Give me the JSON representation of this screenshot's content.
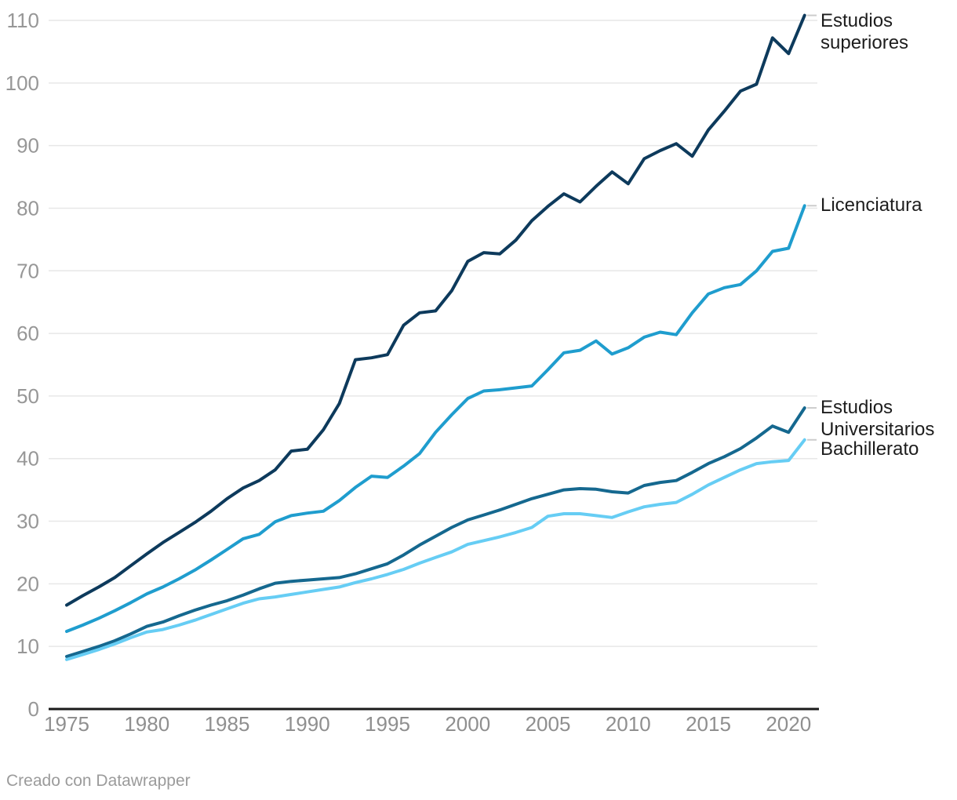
{
  "footer": {
    "credit": "Creado con Datawrapper"
  },
  "chart_data": {
    "type": "line",
    "title": "",
    "x_start": 1975,
    "x_end": 2021,
    "x_axis": {
      "ticks": [
        1975,
        1980,
        1985,
        1990,
        1995,
        2000,
        2005,
        2010,
        2015,
        2020
      ]
    },
    "y_axis": {
      "min": 0,
      "max": 110,
      "ticks": [
        0,
        10,
        20,
        30,
        40,
        50,
        60,
        70,
        80,
        90,
        100,
        110
      ]
    },
    "grid": true,
    "legend_position": "labels-at-line-ends-right",
    "colors": {
      "grid": "#e7e7e7",
      "axis": "#1a1a1a",
      "y_tick_label": "#979797",
      "x_tick_label": "#8f8f8f",
      "series_label": "#1d1d1d",
      "connector": "#cccccc"
    },
    "series": [
      {
        "id": "estudios-superiores",
        "name": "Estudios superiores",
        "label_lines": [
          "Estudios",
          "superiores"
        ],
        "color": "#0d3a5c",
        "values": [
          16.6,
          18.1,
          19.5,
          21.0,
          22.9,
          24.8,
          26.6,
          28.2,
          29.8,
          31.6,
          33.6,
          35.3,
          36.5,
          38.2,
          41.2,
          41.5,
          44.6,
          48.8,
          55.8,
          56.1,
          56.6,
          61.3,
          63.3,
          63.6,
          66.8,
          71.5,
          72.9,
          72.7,
          74.9,
          78.0,
          80.3,
          82.3,
          81.0,
          83.5,
          85.8,
          83.9,
          87.9,
          89.2,
          90.3,
          88.3,
          92.5,
          95.5,
          98.7,
          99.8,
          107.2,
          104.7,
          110.8
        ]
      },
      {
        "id": "licenciatura",
        "name": "Licenciatura",
        "label_lines": [
          "Licenciatura"
        ],
        "color": "#1f9dce",
        "values": [
          12.4,
          13.4,
          14.5,
          15.7,
          17.0,
          18.4,
          19.5,
          20.8,
          22.2,
          23.8,
          25.5,
          27.2,
          27.9,
          29.9,
          30.9,
          31.3,
          31.6,
          33.3,
          35.4,
          37.2,
          37.0,
          38.8,
          40.8,
          44.2,
          47.0,
          49.6,
          50.8,
          51.0,
          51.3,
          51.6,
          54.2,
          56.9,
          57.3,
          58.8,
          56.7,
          57.7,
          59.4,
          60.2,
          59.8,
          63.3,
          66.3,
          67.3,
          67.8,
          70.0,
          73.1,
          73.6,
          80.4
        ]
      },
      {
        "id": "estudios-universitarios",
        "name": "Estudios Universitarios",
        "label_lines": [
          "Estudios",
          "Universitarios"
        ],
        "color": "#15688f",
        "values": [
          8.4,
          9.2,
          10.0,
          10.9,
          12.0,
          13.2,
          13.9,
          14.9,
          15.8,
          16.6,
          17.3,
          18.2,
          19.2,
          20.1,
          20.4,
          20.6,
          20.8,
          21.0,
          21.6,
          22.4,
          23.2,
          24.6,
          26.2,
          27.6,
          29.0,
          30.2,
          31.0,
          31.8,
          32.7,
          33.6,
          34.3,
          35.0,
          35.2,
          35.1,
          34.7,
          34.5,
          35.7,
          36.2,
          36.5,
          37.8,
          39.2,
          40.3,
          41.6,
          43.3,
          45.2,
          44.2,
          48.1
        ]
      },
      {
        "id": "bachillerato",
        "name": "Bachillerato",
        "label_lines": [
          "Bachillerato"
        ],
        "color": "#66cdf4",
        "values": [
          7.9,
          8.7,
          9.5,
          10.4,
          11.4,
          12.3,
          12.7,
          13.4,
          14.2,
          15.1,
          16.0,
          16.9,
          17.6,
          17.9,
          18.3,
          18.7,
          19.1,
          19.5,
          20.2,
          20.8,
          21.5,
          22.3,
          23.3,
          24.2,
          25.1,
          26.3,
          26.9,
          27.5,
          28.2,
          29.0,
          30.8,
          31.2,
          31.2,
          30.9,
          30.6,
          31.5,
          32.3,
          32.7,
          33.0,
          34.3,
          35.8,
          37.0,
          38.2,
          39.2,
          39.5,
          39.7,
          43.0
        ]
      }
    ]
  }
}
